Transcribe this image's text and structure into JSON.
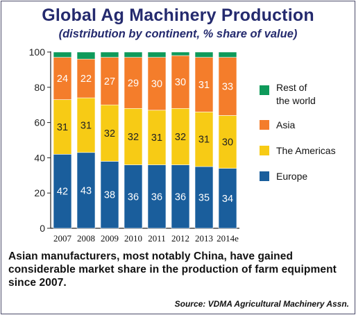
{
  "title": "Global Ag Machinery Production",
  "subtitle": "(distribution by continent, % share of value)",
  "caption": "Asian manufacturers, most notably China, have gained considerable market share in the production of farm equipment since 2007.",
  "source": "Source: VDMA Agricultural Machinery Assn.",
  "chart_data": {
    "type": "bar",
    "stacked": true,
    "categories": [
      "2007",
      "2008",
      "2009",
      "2010",
      "2011",
      "2012",
      "2013",
      "2014e"
    ],
    "series": [
      {
        "name": "Europe",
        "color": "#1a5e9c",
        "values": [
          42,
          43,
          38,
          36,
          36,
          36,
          35,
          34
        ]
      },
      {
        "name": "The Americas",
        "color": "#f7cb15",
        "values": [
          31,
          31,
          32,
          32,
          31,
          32,
          31,
          30
        ]
      },
      {
        "name": "Asia",
        "color": "#f47d2b",
        "values": [
          24,
          22,
          27,
          29,
          30,
          30,
          31,
          33
        ]
      },
      {
        "name": "Rest of the world",
        "color": "#0e9a5a",
        "values": [
          3,
          4,
          3,
          3,
          3,
          2,
          3,
          3
        ]
      }
    ],
    "labeled_series": [
      "Europe",
      "The Americas",
      "Asia"
    ],
    "ylim": [
      0,
      100
    ],
    "yticks": [
      0,
      20,
      40,
      60,
      80,
      100
    ],
    "legend": [
      {
        "lines": [
          "Rest of",
          "the world"
        ],
        "color": "#0e9a5a"
      },
      {
        "lines": [
          "Asia"
        ],
        "color": "#f47d2b"
      },
      {
        "lines": [
          "The Americas"
        ],
        "color": "#f7cb15"
      },
      {
        "lines": [
          "Europe"
        ],
        "color": "#1a5e9c"
      }
    ],
    "legend_position": "right",
    "grid": false
  }
}
